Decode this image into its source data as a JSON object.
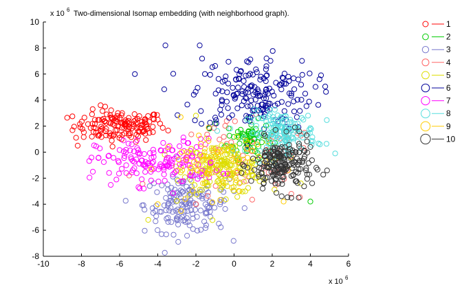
{
  "chart_data": {
    "type": "scatter",
    "title": "Two-dimensional Isomap embedding (with neighborhood graph).",
    "x_multiplier_label": "x 10",
    "x_multiplier_exp": "6",
    "y_multiplier_label": "x 10",
    "y_multiplier_exp": "6",
    "xlabel": "",
    "ylabel": "",
    "xlim": [
      -10,
      6
    ],
    "ylim": [
      -8,
      10
    ],
    "xticks": [
      "-10",
      "-8",
      "-6",
      "-4",
      "-2",
      "0",
      "2",
      "4",
      "6"
    ],
    "yticks": [
      "-8",
      "-6",
      "-4",
      "-2",
      "0",
      "2",
      "4",
      "6",
      "8",
      "10"
    ],
    "grid": false,
    "legend_position": "outside-right",
    "series": [
      {
        "name": "1",
        "color": "#ff0000",
        "cx": -6.0,
        "cy": 2.0,
        "sx": 1.2,
        "sy": 0.6,
        "n": 150,
        "extra": [
          [
            -8.2,
            0.5
          ],
          [
            -7.0,
            3.6
          ],
          [
            -4.0,
            2.5
          ]
        ]
      },
      {
        "name": "2",
        "color": "#00cc00",
        "cx": 0.8,
        "cy": 1.0,
        "sx": 0.6,
        "sy": 0.7,
        "n": 70,
        "extra": [
          [
            0.9,
            2.1
          ],
          [
            -1.0,
            2.2
          ],
          [
            4.0,
            -3.8
          ]
        ]
      },
      {
        "name": "3",
        "color": "#7777cc",
        "cx": -2.5,
        "cy": -4.0,
        "sx": 1.1,
        "sy": 1.1,
        "n": 160,
        "extra": [
          [
            -3.8,
            -6.3
          ],
          [
            -0.8,
            -5.5
          ],
          [
            0.0,
            -3.0
          ]
        ]
      },
      {
        "name": "4",
        "color": "#ff6666",
        "cx": 0.5,
        "cy": -1.0,
        "sx": 2.0,
        "sy": 1.6,
        "n": 60,
        "extra": [
          [
            -5.5,
            -1.8
          ],
          [
            -2.0,
            -4.0
          ],
          [
            3.0,
            -3.2
          ]
        ]
      },
      {
        "name": "5",
        "color": "#dddd00",
        "cx": -0.5,
        "cy": -1.2,
        "sx": 1.1,
        "sy": 1.0,
        "n": 180,
        "extra": [
          [
            -4.5,
            -5.2
          ],
          [
            -2.0,
            2.8
          ],
          [
            3.5,
            -2.4
          ]
        ]
      },
      {
        "name": "6",
        "color": "#000099",
        "cx": 1.0,
        "cy": 4.5,
        "sx": 1.6,
        "sy": 1.4,
        "n": 190,
        "extra": [
          [
            -3.6,
            8.2
          ],
          [
            -1.8,
            8.2
          ],
          [
            -5.2,
            6.0
          ],
          [
            1.7,
            7.2
          ]
        ]
      },
      {
        "name": "7",
        "color": "#ff00ff",
        "cx": -4.0,
        "cy": -0.8,
        "sx": 1.6,
        "sy": 0.9,
        "n": 150,
        "extra": [
          [
            -7.4,
            -1.5
          ],
          [
            -5.8,
            0.9
          ],
          [
            -1.5,
            0.6
          ]
        ]
      },
      {
        "name": "8",
        "color": "#55dddd",
        "cx": 2.5,
        "cy": 1.5,
        "sx": 0.9,
        "sy": 0.8,
        "n": 150,
        "extra": [
          [
            4.5,
            0.6
          ],
          [
            5.3,
            -0.1
          ],
          [
            1.5,
            2.6
          ]
        ]
      },
      {
        "name": "9",
        "color": "#ffcc00",
        "cx": -1.0,
        "cy": -1.0,
        "sx": 1.4,
        "sy": 1.2,
        "n": 60,
        "extra": [
          [
            -4.0,
            -4.0
          ],
          [
            -2.8,
            2.7
          ],
          [
            2.6,
            -3.8
          ]
        ]
      },
      {
        "name": "10",
        "color": "#333333",
        "cx": 2.5,
        "cy": -1.0,
        "sx": 0.8,
        "sy": 1.0,
        "n": 190,
        "extra": [
          [
            3.0,
            -3.5
          ],
          [
            1.5,
            -2.8
          ],
          [
            4.0,
            0.4
          ]
        ]
      }
    ]
  }
}
